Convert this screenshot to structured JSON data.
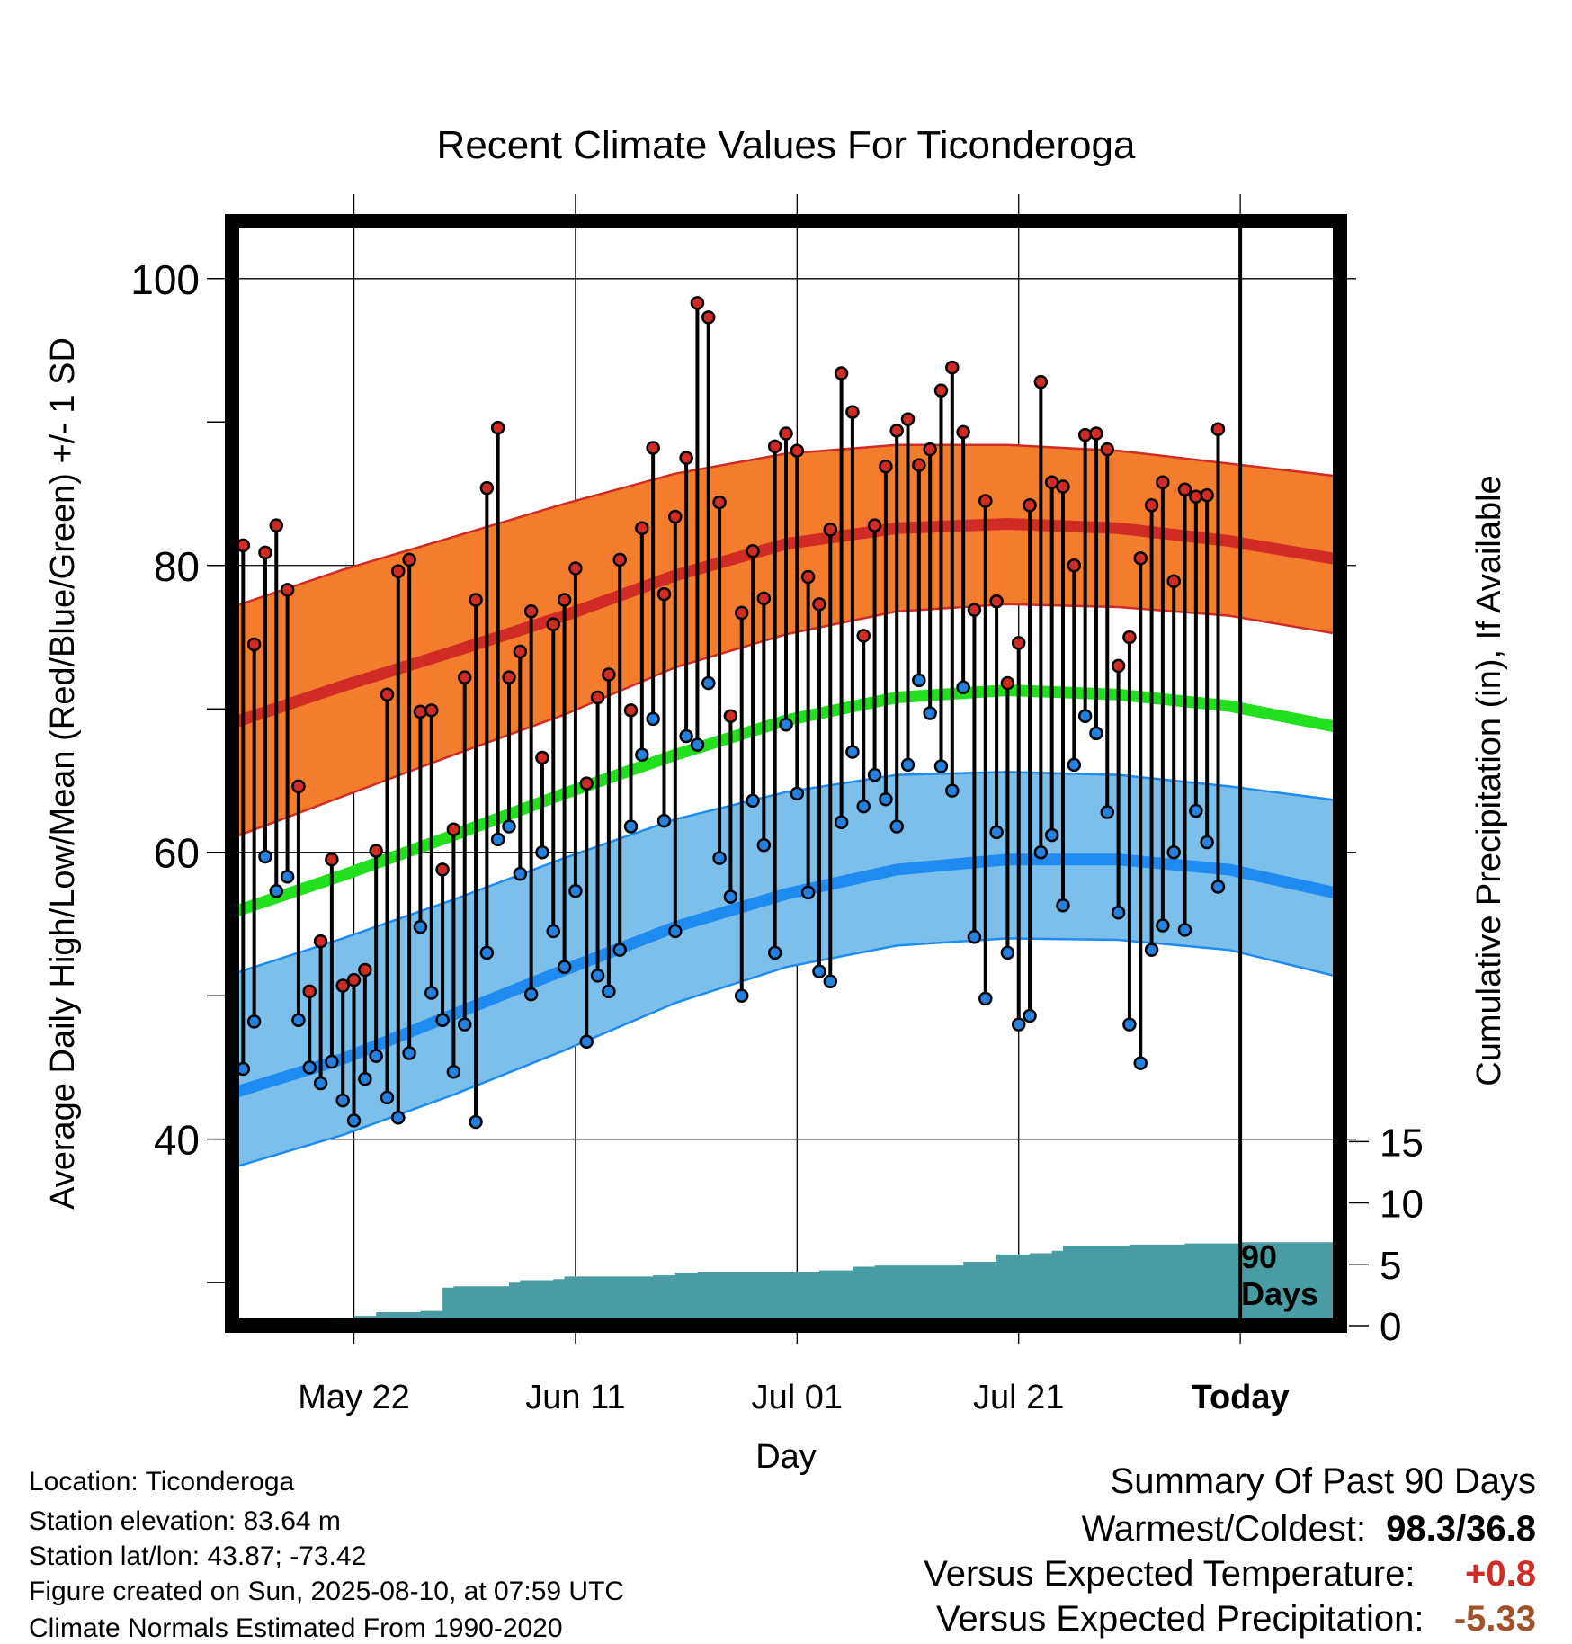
{
  "chart_data": {
    "type": "line",
    "title": "Recent Climate Values For Ticonderoga",
    "xlabel": "Day",
    "ylabel": "Average Daily High/Low/Mean (Red/Blue/Green) +/- 1 SD",
    "y2label": "Cumulative Precipitation (in), If Available",
    "x_range": [
      "2025-05-11",
      "2025-08-19"
    ],
    "ylim": [
      27,
      104
    ],
    "y2lim": [
      0,
      90
    ],
    "y_ticks": [
      40,
      60,
      80,
      100
    ],
    "y2_ticks": [
      0,
      5,
      10,
      15
    ],
    "x_ticks": [
      {
        "date": "2025-05-22",
        "label": "May 22"
      },
      {
        "date": "2025-06-11",
        "label": "Jun 11"
      },
      {
        "date": "2025-07-01",
        "label": "Jul 01"
      },
      {
        "date": "2025-07-21",
        "label": "Jul 21"
      },
      {
        "date": "2025-08-10",
        "label": "Today"
      }
    ],
    "today": {
      "date": "2025-08-10",
      "label_line1": "90",
      "label_line2": "Days"
    },
    "first_date": "2025-05-11",
    "normals": {
      "dates": [
        "2025-05-11",
        "2025-05-21",
        "2025-05-31",
        "2025-06-10",
        "2025-06-20",
        "2025-06-30",
        "2025-07-10",
        "2025-07-20",
        "2025-07-30",
        "2025-08-09",
        "2025-08-19"
      ],
      "high_mean": [
        69.0,
        71.6,
        74.0,
        76.5,
        79.3,
        81.5,
        82.6,
        82.9,
        82.6,
        81.7,
        80.4
      ],
      "high_upper": [
        77.1,
        79.7,
        82.0,
        84.3,
        86.4,
        87.8,
        88.4,
        88.4,
        88.0,
        87.1,
        86.2
      ],
      "high_lower": [
        61.0,
        63.9,
        66.8,
        69.6,
        72.9,
        75.2,
        76.8,
        77.3,
        77.1,
        76.5,
        75.2
      ],
      "mean": [
        55.8,
        58.4,
        61.2,
        64.1,
        66.8,
        69.2,
        70.8,
        71.3,
        71.0,
        70.2,
        68.7
      ],
      "low_mean": [
        43.2,
        45.6,
        48.7,
        51.8,
        54.8,
        57.1,
        58.8,
        59.5,
        59.5,
        58.8,
        57.1
      ],
      "low_upper": [
        51.5,
        54.0,
        56.7,
        59.6,
        62.3,
        64.2,
        65.4,
        65.6,
        65.4,
        64.6,
        63.6
      ],
      "low_lower": [
        38.0,
        40.3,
        43.1,
        46.2,
        49.5,
        52.0,
        53.5,
        54.0,
        53.9,
        53.2,
        51.3
      ]
    },
    "series": [
      {
        "name": "High",
        "values": [
          79.2,
          81.4,
          74.5,
          80.9,
          82.8,
          78.3,
          64.6,
          50.3,
          53.8,
          59.5,
          50.7,
          51.1,
          51.8,
          60.1,
          71.0,
          79.6,
          80.4,
          69.8,
          69.9,
          58.8,
          61.6,
          72.2,
          77.6,
          85.4,
          89.6,
          72.2,
          74.0,
          76.8,
          66.6,
          75.9,
          77.6,
          79.8,
          64.8,
          70.8,
          72.4,
          80.4,
          69.9,
          82.6,
          88.2,
          78.0,
          83.4,
          87.5,
          98.3,
          97.3,
          84.4,
          69.5,
          76.7,
          81.0,
          77.7,
          88.3,
          89.2,
          88.0,
          79.2,
          77.3,
          82.5,
          93.4,
          90.7,
          75.1,
          82.8,
          86.9,
          89.4,
          90.2,
          87.0,
          88.1,
          92.2,
          93.8,
          89.3,
          76.9,
          84.5,
          77.5,
          71.8,
          74.6,
          84.2,
          92.8,
          85.8,
          85.5,
          80.0,
          89.1,
          89.2,
          88.1,
          73.0,
          75.0,
          80.5,
          84.2,
          85.8,
          78.9,
          85.3,
          84.8,
          84.9,
          89.5
        ]
      },
      {
        "name": "Low",
        "values": [
          36.8,
          44.9,
          48.2,
          59.7,
          57.3,
          58.3,
          48.3,
          45.0,
          43.9,
          45.4,
          42.7,
          41.3,
          44.2,
          45.8,
          42.9,
          41.5,
          46.0,
          54.8,
          50.2,
          48.3,
          44.7,
          48.0,
          41.2,
          53.0,
          60.9,
          61.8,
          58.5,
          50.1,
          60.0,
          54.5,
          52.0,
          57.3,
          46.8,
          51.4,
          50.3,
          53.2,
          61.8,
          66.8,
          69.3,
          62.2,
          54.5,
          68.1,
          67.5,
          71.8,
          59.6,
          56.9,
          50.0,
          63.6,
          60.5,
          53.0,
          68.9,
          64.1,
          57.2,
          51.7,
          51.0,
          62.1,
          67.0,
          63.2,
          65.4,
          63.7,
          61.8,
          66.1,
          72.0,
          69.7,
          66.0,
          64.3,
          71.5,
          54.1,
          49.8,
          61.4,
          53.0,
          48.0,
          48.6,
          60.0,
          61.2,
          56.3,
          66.1,
          69.5,
          68.3,
          62.8,
          55.8,
          48.0,
          45.3,
          53.2,
          54.9,
          60.0,
          54.6,
          62.9,
          60.7,
          57.6
        ]
      }
    ],
    "precip_cumulative": {
      "dates": [
        "2025-05-16",
        "2025-05-20",
        "2025-05-22",
        "2025-05-24",
        "2025-05-28",
        "2025-05-30",
        "2025-05-31",
        "2025-06-05",
        "2025-06-06",
        "2025-06-09",
        "2025-06-10",
        "2025-06-18",
        "2025-06-20",
        "2025-06-22",
        "2025-07-03",
        "2025-07-06",
        "2025-07-08",
        "2025-07-16",
        "2025-07-19",
        "2025-07-22",
        "2025-07-24",
        "2025-07-25",
        "2025-07-31",
        "2025-08-05",
        "2025-08-10"
      ],
      "values": [
        0.5,
        0.6,
        0.8,
        1.1,
        1.2,
        3.1,
        3.2,
        3.5,
        3.7,
        3.8,
        4.0,
        4.1,
        4.3,
        4.4,
        4.5,
        4.8,
        4.9,
        5.2,
        5.8,
        5.9,
        6.1,
        6.5,
        6.6,
        6.7,
        6.8
      ]
    },
    "colors": {
      "high_band": "#f47c2d",
      "high_line": "#d12b26",
      "mean_line": "#22e01e",
      "low_band": "#7cbfea",
      "low_line": "#1f8bf0",
      "precip": "#4a9ca4",
      "high_dot": "#d12b26",
      "low_dot": "#2581e0"
    }
  },
  "info": {
    "location": "Location: Ticonderoga",
    "elevation": "Station elevation: 83.64 m",
    "latlon": "Station lat/lon: 43.87; -73.42",
    "created": "Figure created on Sun, 2025-08-10, at 07:59 UTC",
    "normals": "Climate Normals Estimated From 1990-2020"
  },
  "summary": {
    "heading": "Summary Of Past 90 Days",
    "warm_label": "Warmest/Coldest:",
    "warm_value": "98.3/36.8",
    "temp_label": "Versus Expected Temperature:",
    "temp_value": "+0.8",
    "temp_color": "#d12b26",
    "precip_label": "Versus Expected Precipitation:",
    "precip_value": "-5.33",
    "precip_color": "#a0522d"
  }
}
